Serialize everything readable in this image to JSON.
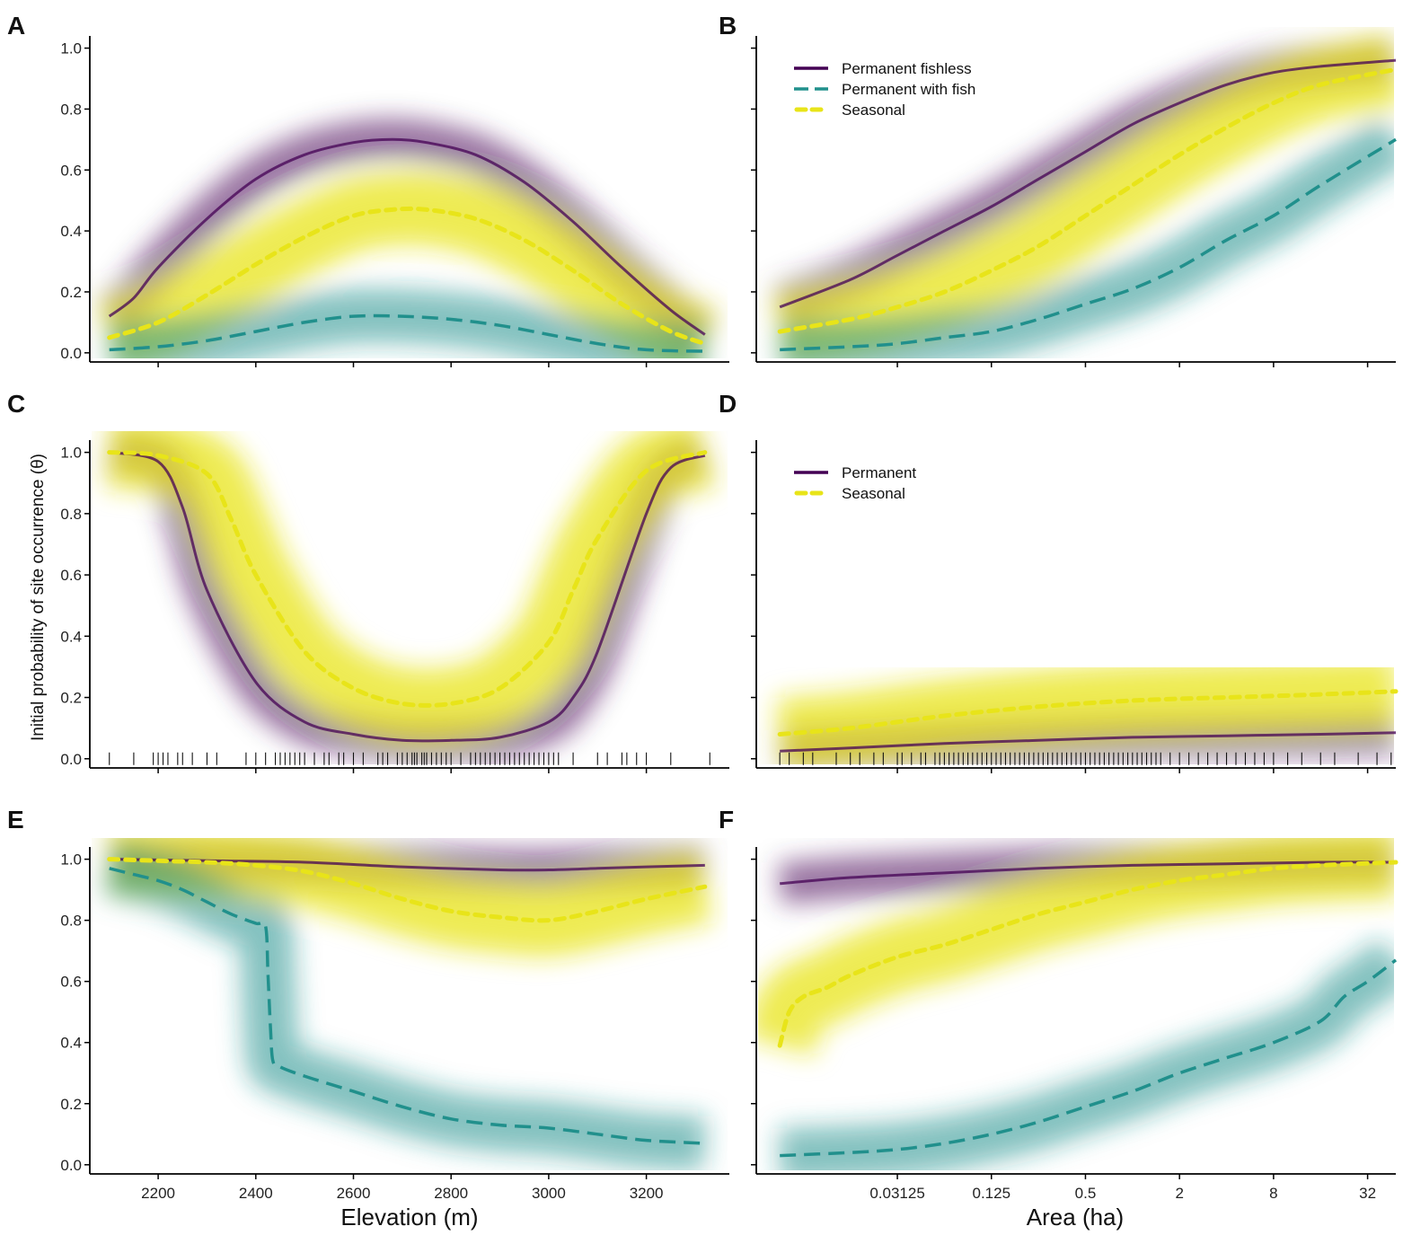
{
  "figure": {
    "ylabel": "Initial probability of site occurrence (θ)",
    "colors": {
      "permanent_fishless": "#440154",
      "permanent_with_fish": "#21908C",
      "seasonal": "#E8E419"
    }
  },
  "elevation_axis": {
    "title": "Elevation (m)",
    "range": [
      2060,
      3370
    ],
    "ticks": [
      2200,
      2400,
      2600,
      2800,
      3000,
      3200
    ],
    "tick_labels": [
      "2200",
      "2400",
      "2600",
      "2800",
      "3000",
      "3200"
    ]
  },
  "area_axis": {
    "title": "Area (ha)",
    "scale": "log2",
    "range_log2": [
      -8.0,
      5.6
    ],
    "ticks_log2": [
      -5,
      -3,
      -1,
      1,
      3,
      5
    ],
    "tick_labels": [
      "0.03125",
      "0.125",
      "0.5",
      "2",
      "8",
      "32"
    ]
  },
  "y_axis": {
    "range": [
      -0.03,
      1.04
    ],
    "ticks": [
      0,
      0.2,
      0.4,
      0.6,
      0.8,
      1.0
    ],
    "tick_labels": [
      "0.0",
      "0.2",
      "0.4",
      "0.6",
      "0.8",
      "1.0"
    ]
  },
  "chart_data": [
    {
      "panel": "A",
      "type": "line",
      "x_axis": "elevation",
      "series": [
        {
          "name": "Permanent fishless",
          "key": "permanent_fishless",
          "style": "solid",
          "x": [
            2100,
            2150,
            2200,
            2300,
            2400,
            2500,
            2600,
            2680,
            2750,
            2850,
            2950,
            3050,
            3150,
            3250,
            3320
          ],
          "y": [
            0.12,
            0.18,
            0.28,
            0.44,
            0.57,
            0.65,
            0.69,
            0.7,
            0.69,
            0.65,
            0.56,
            0.43,
            0.28,
            0.14,
            0.06
          ]
        },
        {
          "name": "Seasonal",
          "key": "seasonal",
          "style": "dotted",
          "x": [
            2100,
            2200,
            2300,
            2400,
            2500,
            2600,
            2680,
            2750,
            2850,
            2950,
            3050,
            3150,
            3250,
            3320
          ],
          "y": [
            0.05,
            0.1,
            0.19,
            0.29,
            0.38,
            0.45,
            0.47,
            0.47,
            0.44,
            0.37,
            0.27,
            0.16,
            0.07,
            0.03
          ]
        },
        {
          "name": "Permanent with fish",
          "key": "permanent_with_fish",
          "style": "dashed",
          "x": [
            2100,
            2200,
            2300,
            2400,
            2500,
            2600,
            2700,
            2800,
            2900,
            3000,
            3100,
            3200,
            3320
          ],
          "y": [
            0.01,
            0.02,
            0.04,
            0.07,
            0.1,
            0.12,
            0.12,
            0.11,
            0.09,
            0.06,
            0.03,
            0.01,
            0.005
          ]
        }
      ]
    },
    {
      "panel": "B",
      "type": "line",
      "x_axis": "area",
      "legend": [
        "Permanent fishless",
        "Permanent with fish",
        "Seasonal"
      ],
      "series": [
        {
          "name": "Permanent fishless",
          "key": "permanent_fishless",
          "style": "solid",
          "x_log2": [
            -7.5,
            -6,
            -5,
            -4,
            -3,
            -2,
            -1,
            0,
            1,
            2,
            3,
            4,
            5.6
          ],
          "y": [
            0.15,
            0.24,
            0.32,
            0.4,
            0.48,
            0.57,
            0.66,
            0.75,
            0.82,
            0.88,
            0.92,
            0.94,
            0.96
          ]
        },
        {
          "name": "Seasonal",
          "key": "seasonal",
          "style": "dotted",
          "x_log2": [
            -7.5,
            -6,
            -5,
            -4,
            -3,
            -2,
            -1,
            0,
            1,
            2,
            3,
            4,
            5.6
          ],
          "y": [
            0.07,
            0.11,
            0.15,
            0.2,
            0.27,
            0.35,
            0.45,
            0.55,
            0.65,
            0.74,
            0.82,
            0.88,
            0.93
          ]
        },
        {
          "name": "Permanent with fish",
          "key": "permanent_with_fish",
          "style": "dashed",
          "x_log2": [
            -7.5,
            -6,
            -5,
            -4,
            -3,
            -2,
            -1,
            0,
            1,
            2,
            3,
            4,
            5.6
          ],
          "y": [
            0.01,
            0.02,
            0.03,
            0.05,
            0.07,
            0.11,
            0.16,
            0.21,
            0.28,
            0.37,
            0.45,
            0.55,
            0.7
          ]
        }
      ]
    },
    {
      "panel": "C",
      "type": "line",
      "x_axis": "elevation",
      "series": [
        {
          "name": "Permanent",
          "key": "permanent_fishless",
          "style": "solid",
          "x": [
            2100,
            2200,
            2250,
            2300,
            2400,
            2500,
            2600,
            2700,
            2800,
            2900,
            3000,
            3050,
            3100,
            3200,
            3250,
            3320
          ],
          "y": [
            1.0,
            0.97,
            0.82,
            0.55,
            0.25,
            0.12,
            0.08,
            0.06,
            0.06,
            0.07,
            0.12,
            0.2,
            0.35,
            0.8,
            0.95,
            0.99
          ]
        },
        {
          "name": "Seasonal",
          "key": "seasonal",
          "style": "dotted",
          "x": [
            2100,
            2200,
            2300,
            2350,
            2400,
            2500,
            2600,
            2700,
            2800,
            2900,
            3000,
            3050,
            3100,
            3200,
            3320
          ],
          "y": [
            1.0,
            0.99,
            0.93,
            0.78,
            0.6,
            0.35,
            0.23,
            0.18,
            0.18,
            0.23,
            0.38,
            0.55,
            0.72,
            0.94,
            1.0
          ]
        }
      ],
      "rug_x": [
        2100,
        2150,
        2190,
        2200,
        2210,
        2220,
        2240,
        2250,
        2270,
        2300,
        2320,
        2380,
        2400,
        2420,
        2440,
        2450,
        2460,
        2470,
        2480,
        2490,
        2500,
        2520,
        2540,
        2550,
        2570,
        2580,
        2600,
        2620,
        2650,
        2660,
        2670,
        2690,
        2700,
        2710,
        2720,
        2725,
        2730,
        2740,
        2745,
        2750,
        2760,
        2770,
        2780,
        2790,
        2800,
        2820,
        2840,
        2850,
        2860,
        2870,
        2880,
        2890,
        2900,
        2910,
        2920,
        2930,
        2940,
        2950,
        2960,
        2970,
        2980,
        2990,
        3000,
        3010,
        3020,
        3050,
        3100,
        3120,
        3150,
        3160,
        3180,
        3200,
        3250,
        3330
      ]
    },
    {
      "panel": "D",
      "type": "line",
      "x_axis": "area",
      "legend": [
        "Permanent",
        "Seasonal"
      ],
      "series": [
        {
          "name": "Permanent",
          "key": "permanent_fishless",
          "style": "solid",
          "x_log2": [
            -7.5,
            -6,
            -4,
            -2,
            0,
            2,
            4,
            5.6
          ],
          "y": [
            0.025,
            0.035,
            0.05,
            0.06,
            0.07,
            0.075,
            0.08,
            0.085
          ]
        },
        {
          "name": "Seasonal",
          "key": "seasonal",
          "style": "dotted",
          "x_log2": [
            -7.5,
            -6,
            -4,
            -2,
            0,
            2,
            4,
            5.6
          ],
          "y": [
            0.08,
            0.1,
            0.14,
            0.17,
            0.19,
            0.2,
            0.21,
            0.22
          ]
        }
      ],
      "rug_x_log2": [
        -7.5,
        -7.3,
        -7.0,
        -6.8,
        -6.3,
        -6.0,
        -5.8,
        -5.5,
        -5.3,
        -5.0,
        -4.9,
        -4.7,
        -4.5,
        -4.4,
        -4.2,
        -4.1,
        -4.0,
        -3.9,
        -3.8,
        -3.7,
        -3.6,
        -3.5,
        -3.4,
        -3.3,
        -3.2,
        -3.1,
        -3.0,
        -2.9,
        -2.8,
        -2.7,
        -2.6,
        -2.5,
        -2.4,
        -2.3,
        -2.2,
        -2.1,
        -2.0,
        -1.9,
        -1.8,
        -1.7,
        -1.6,
        -1.5,
        -1.4,
        -1.3,
        -1.2,
        -1.1,
        -1.0,
        -0.9,
        -0.8,
        -0.7,
        -0.6,
        -0.5,
        -0.4,
        -0.3,
        -0.2,
        -0.1,
        0.0,
        0.1,
        0.2,
        0.3,
        0.4,
        0.5,
        0.6,
        0.8,
        1.0,
        1.2,
        1.4,
        1.6,
        1.8,
        2.0,
        2.2,
        2.4,
        2.6,
        2.8,
        3.0,
        3.3,
        3.6,
        4.0,
        4.3,
        4.8,
        5.2,
        5.5
      ]
    },
    {
      "panel": "E",
      "type": "line",
      "x_axis": "elevation",
      "series": [
        {
          "name": "Permanent fishless",
          "key": "permanent_fishless",
          "style": "solid",
          "x": [
            2100,
            2300,
            2500,
            2700,
            2900,
            3000,
            3100,
            3200,
            3320
          ],
          "y": [
            1.0,
            0.995,
            0.99,
            0.975,
            0.965,
            0.965,
            0.97,
            0.975,
            0.98
          ]
        },
        {
          "name": "Seasonal",
          "key": "seasonal",
          "style": "dotted",
          "x": [
            2100,
            2200,
            2300,
            2400,
            2500,
            2600,
            2700,
            2800,
            2900,
            3000,
            3100,
            3200,
            3320
          ],
          "y": [
            1.0,
            0.995,
            0.99,
            0.98,
            0.96,
            0.92,
            0.87,
            0.83,
            0.81,
            0.8,
            0.83,
            0.87,
            0.91
          ]
        },
        {
          "name": "Permanent with fish",
          "key": "permanent_with_fish",
          "style": "dashed",
          "x": [
            2100,
            2150,
            2200,
            2250,
            2300,
            2350,
            2400,
            2420,
            2425,
            2430,
            2435,
            2450,
            2500,
            2600,
            2700,
            2800,
            2900,
            3000,
            3100,
            3200,
            3320
          ],
          "y": [
            0.97,
            0.95,
            0.93,
            0.9,
            0.86,
            0.82,
            0.79,
            0.78,
            0.62,
            0.45,
            0.34,
            0.32,
            0.29,
            0.24,
            0.19,
            0.15,
            0.13,
            0.12,
            0.1,
            0.08,
            0.07
          ]
        }
      ]
    },
    {
      "panel": "F",
      "type": "line",
      "x_axis": "area",
      "series": [
        {
          "name": "Permanent fishless",
          "key": "permanent_fishless",
          "style": "solid",
          "x_log2": [
            -7.5,
            -6,
            -4,
            -2,
            0,
            2,
            4,
            5.6
          ],
          "y": [
            0.92,
            0.94,
            0.955,
            0.97,
            0.98,
            0.985,
            0.99,
            0.99
          ]
        },
        {
          "name": "Seasonal",
          "key": "seasonal",
          "style": "dotted",
          "x_log2": [
            -7.5,
            -7.3,
            -7.0,
            -6.5,
            -6.0,
            -5.0,
            -4.0,
            -3.0,
            -2.0,
            -1.0,
            0.0,
            1.0,
            2.0,
            3.0,
            4.0,
            5.6
          ],
          "y": [
            0.39,
            0.5,
            0.55,
            0.58,
            0.62,
            0.68,
            0.72,
            0.77,
            0.82,
            0.86,
            0.9,
            0.93,
            0.95,
            0.97,
            0.98,
            0.99
          ]
        },
        {
          "name": "Permanent with fish",
          "key": "permanent_with_fish",
          "style": "dashed",
          "x_log2": [
            -7.5,
            -6,
            -5,
            -4,
            -3,
            -2,
            -1,
            0,
            1,
            2,
            3,
            4,
            4.5,
            5.0,
            5.6
          ],
          "y": [
            0.03,
            0.04,
            0.05,
            0.07,
            0.1,
            0.14,
            0.19,
            0.24,
            0.3,
            0.35,
            0.4,
            0.47,
            0.55,
            0.6,
            0.67
          ]
        }
      ]
    }
  ]
}
